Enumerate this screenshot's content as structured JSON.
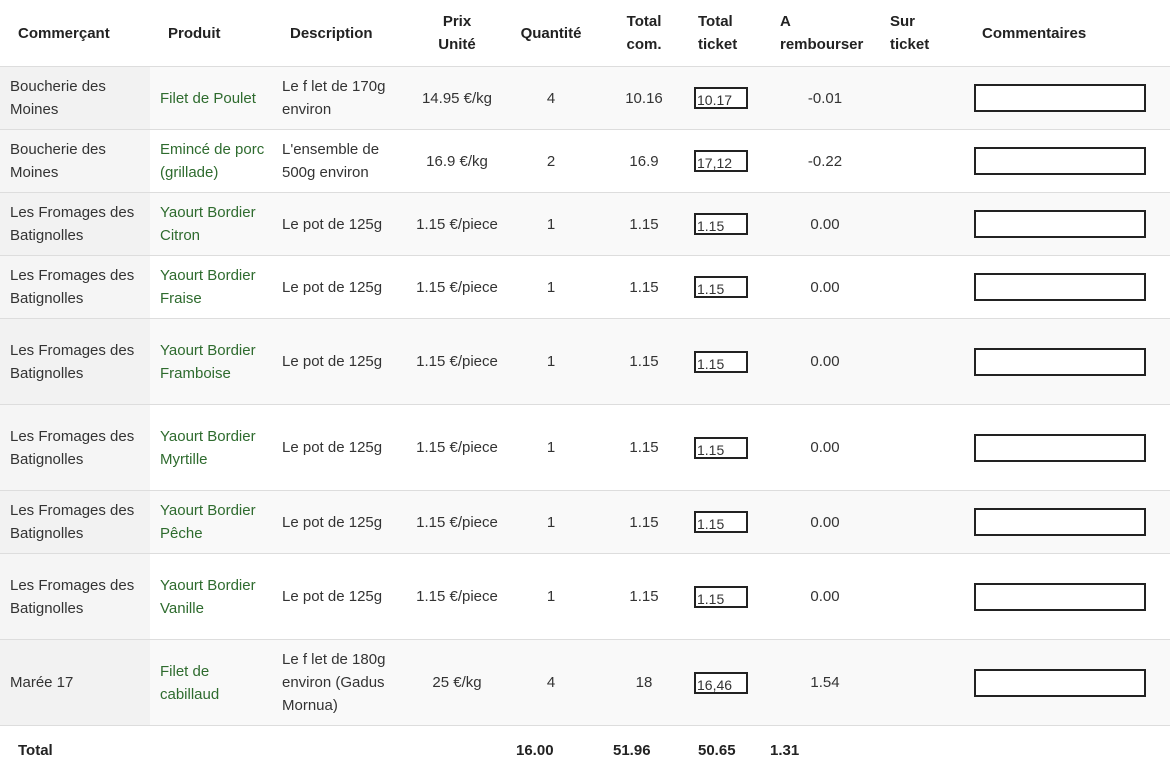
{
  "headers": {
    "commercant": "Commerçant",
    "produit": "Produit",
    "description": "Description",
    "prix_1": "Prix",
    "prix_2": "Unité",
    "quantite": "Quantité",
    "total_com_1": "Total",
    "total_com_2": "com.",
    "total_ticket_1": "Total",
    "total_ticket_2": "ticket",
    "rembourser_1": "A",
    "rembourser_2": "rembourser",
    "sur_ticket_1": "Sur",
    "sur_ticket_2": "ticket",
    "commentaires": "Commentaires"
  },
  "rows": [
    {
      "commercant": "Boucherie des Moines",
      "produit": "Filet de Poulet",
      "description": "Le f let de 170g environ",
      "prix": "14.95 €/kg",
      "quantite": "4",
      "total_com": "10.16",
      "total_ticket": "10.17",
      "rembourser": "-0.01",
      "sur_ticket": "",
      "commentaire": ""
    },
    {
      "commercant": "Boucherie des Moines",
      "produit": "Emincé de porc (grillade)",
      "description": "L'ensemble de 500g environ",
      "prix": "16.9 €/kg",
      "quantite": "2",
      "total_com": "16.9",
      "total_ticket": "17,12",
      "rembourser": "-0.22",
      "sur_ticket": "",
      "commentaire": ""
    },
    {
      "commercant": "Les Fromages des Batignolles",
      "produit": "Yaourt Bordier Citron",
      "description": "Le pot de 125g",
      "prix": "1.15 €/piece",
      "quantite": "1",
      "total_com": "1.15",
      "total_ticket": "1.15",
      "rembourser": "0.00",
      "sur_ticket": "",
      "commentaire": ""
    },
    {
      "commercant": "Les Fromages des Batignolles",
      "produit": "Yaourt Bordier Fraise",
      "description": "Le pot de 125g",
      "prix": "1.15 €/piece",
      "quantite": "1",
      "total_com": "1.15",
      "total_ticket": "1.15",
      "rembourser": "0.00",
      "sur_ticket": "",
      "commentaire": ""
    },
    {
      "commercant": "Les Fromages des Batignolles",
      "produit": "Yaourt Bordier Framboise",
      "description": "Le pot de 125g",
      "prix": "1.15 €/piece",
      "quantite": "1",
      "total_com": "1.15",
      "total_ticket": "1.15",
      "rembourser": "0.00",
      "sur_ticket": "",
      "commentaire": ""
    },
    {
      "commercant": "Les Fromages des Batignolles",
      "produit": "Yaourt Bordier Myrtille",
      "description": "Le pot de 125g",
      "prix": "1.15 €/piece",
      "quantite": "1",
      "total_com": "1.15",
      "total_ticket": "1.15",
      "rembourser": "0.00",
      "sur_ticket": "",
      "commentaire": ""
    },
    {
      "commercant": "Les Fromages des Batignolles",
      "produit": "Yaourt Bordier Pêche",
      "description": "Le pot de 125g",
      "prix": "1.15 €/piece",
      "quantite": "1",
      "total_com": "1.15",
      "total_ticket": "1.15",
      "rembourser": "0.00",
      "sur_ticket": "",
      "commentaire": ""
    },
    {
      "commercant": "Les Fromages des Batignolles",
      "produit": "Yaourt Bordier Vanille",
      "description": "Le pot de 125g",
      "prix": "1.15 €/piece",
      "quantite": "1",
      "total_com": "1.15",
      "total_ticket": "1.15",
      "rembourser": "0.00",
      "sur_ticket": "",
      "commentaire": ""
    },
    {
      "commercant": "Marée 17",
      "produit": "Filet de cabillaud",
      "description": "Le f let de 180g environ (Gadus Mornua)",
      "prix": "25 €/kg",
      "quantite": "4",
      "total_com": "18",
      "total_ticket": "16,46",
      "rembourser": "1.54",
      "sur_ticket": "",
      "commentaire": ""
    }
  ],
  "totals": {
    "label": "Total",
    "quantite": "16.00",
    "total_com": "51.96",
    "total_ticket": "50.65",
    "rembourser": "1.31"
  },
  "colors": {
    "product_text": "#2e6b2e",
    "row_stripe": "#f9f9f9",
    "border": "#dddddd"
  }
}
